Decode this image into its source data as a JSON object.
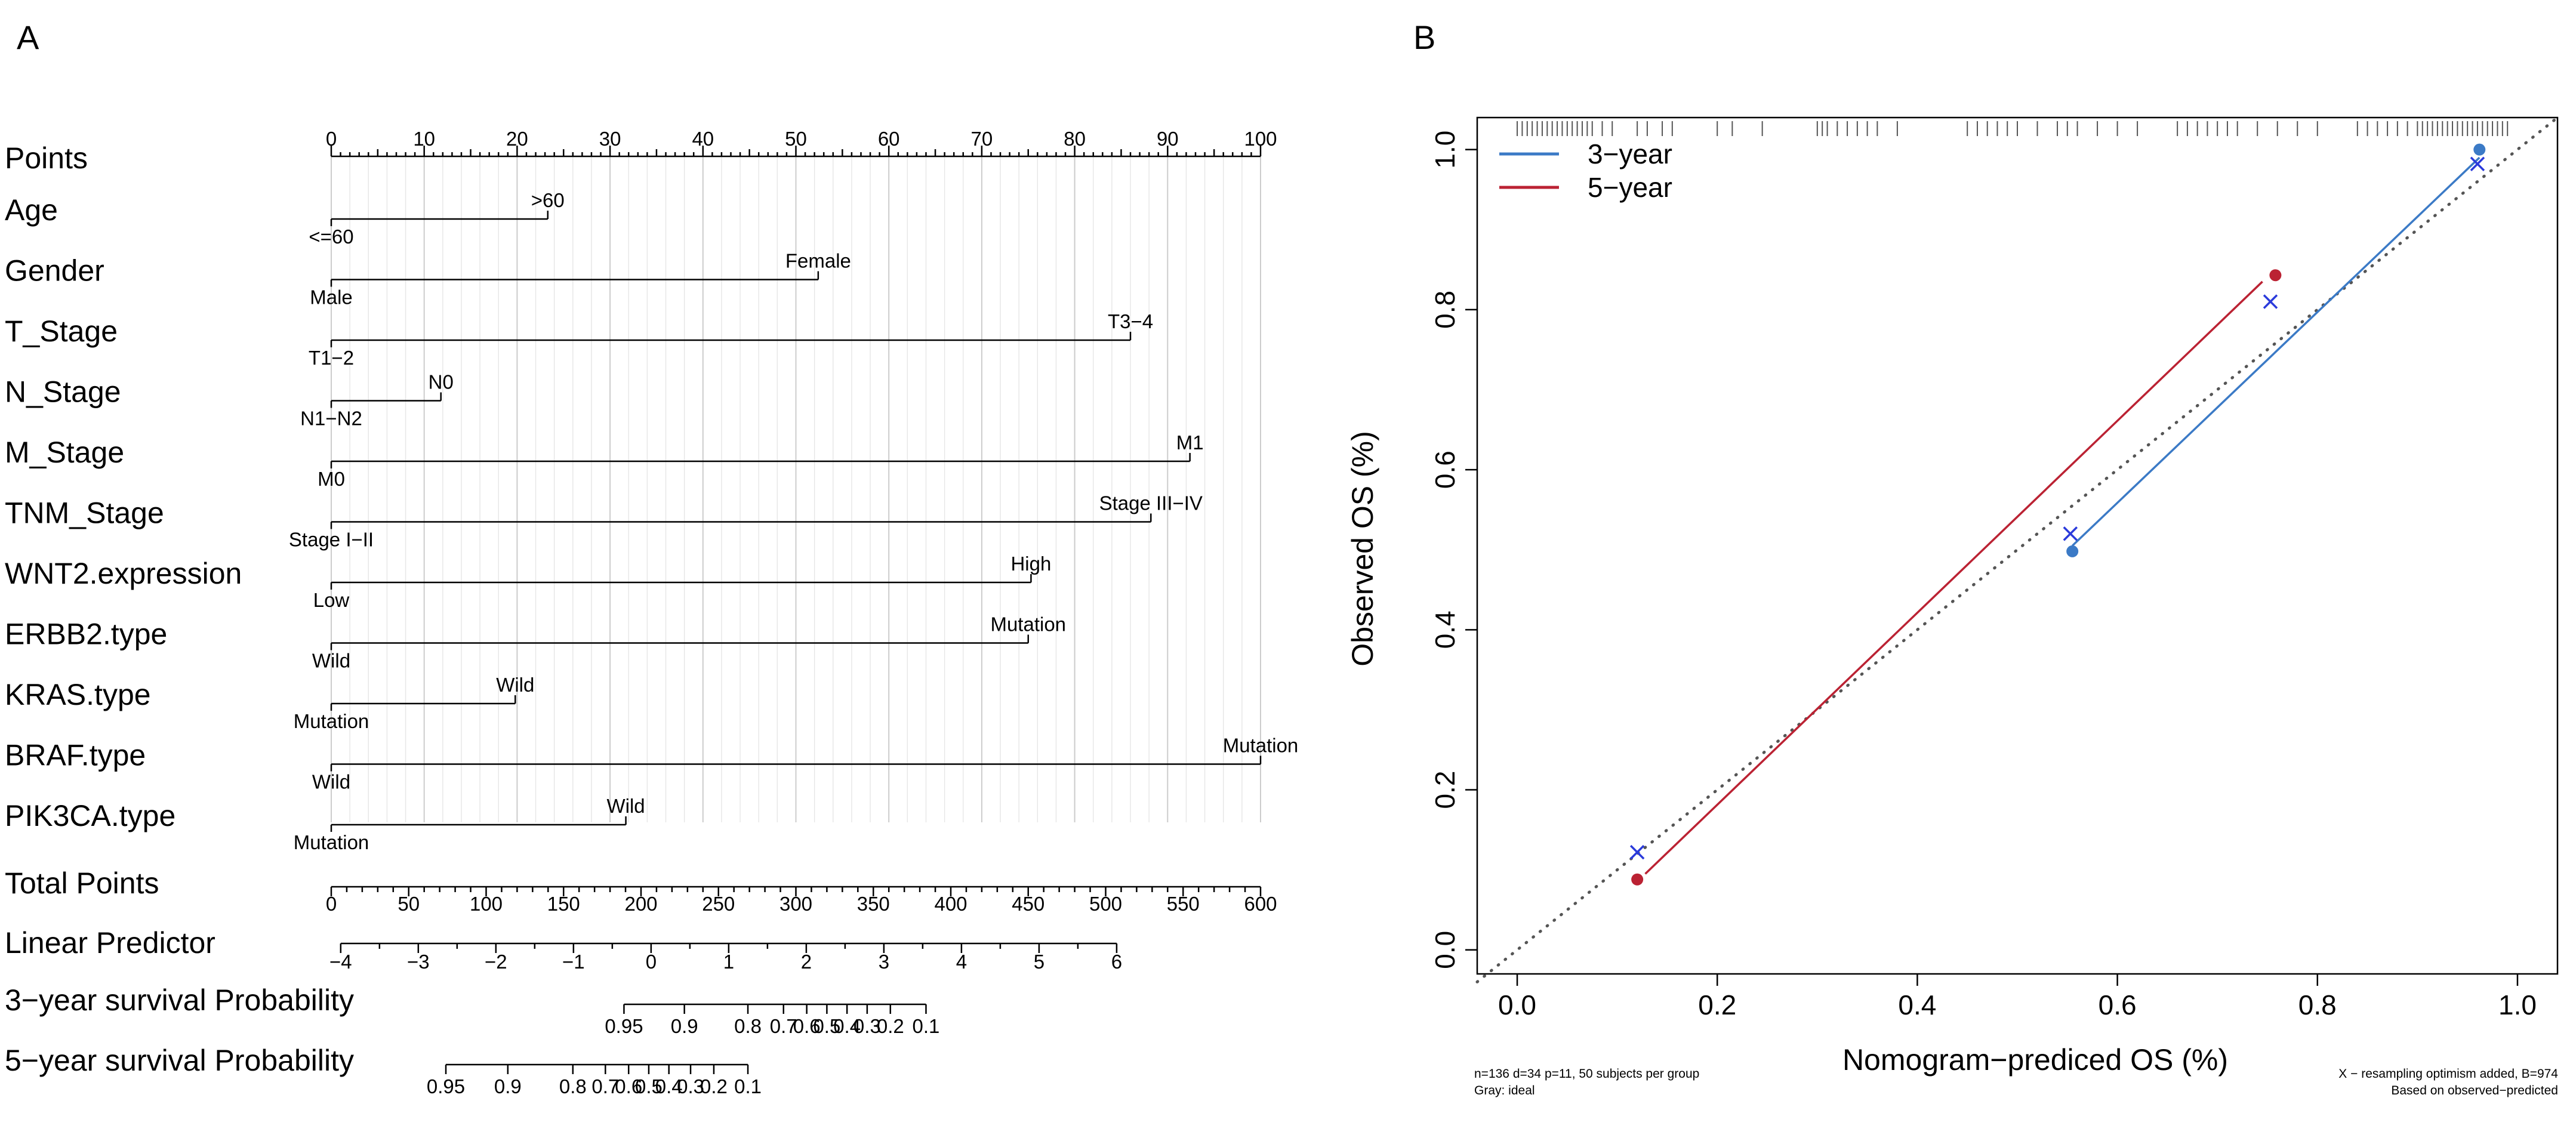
{
  "panel_a": {
    "label": "A",
    "chart_data": {
      "type": "nomogram",
      "points_scale": {
        "label": "Points",
        "min": 0,
        "max": 100,
        "major": [
          0,
          10,
          20,
          30,
          40,
          50,
          60,
          70,
          80,
          90,
          100
        ]
      },
      "variables": [
        {
          "name": "Age",
          "levels": [
            {
              "label": "<=60",
              "points": 0
            },
            {
              "label": ">60",
              "points": 23.3
            }
          ]
        },
        {
          "name": "Gender",
          "levels": [
            {
              "label": "Male",
              "points": 0
            },
            {
              "label": "Female",
              "points": 52.4
            }
          ]
        },
        {
          "name": "T_Stage",
          "levels": [
            {
              "label": "T1−2",
              "points": 0
            },
            {
              "label": "T3−4",
              "points": 86
            }
          ]
        },
        {
          "name": "N_Stage",
          "levels": [
            {
              "label": "N1−N2",
              "points": 0
            },
            {
              "label": "N0",
              "points": 11.8
            }
          ]
        },
        {
          "name": "M_Stage",
          "levels": [
            {
              "label": "M0",
              "points": 0
            },
            {
              "label": "M1",
              "points": 92.4
            }
          ]
        },
        {
          "name": "TNM_Stage",
          "levels": [
            {
              "label": "Stage I−II",
              "points": 0
            },
            {
              "label": "Stage III−IV",
              "points": 88.2
            }
          ]
        },
        {
          "name": "WNT2.expression",
          "levels": [
            {
              "label": "Low",
              "points": 0
            },
            {
              "label": "High",
              "points": 75.3
            }
          ]
        },
        {
          "name": "ERBB2.type",
          "levels": [
            {
              "label": "Wild",
              "points": 0
            },
            {
              "label": "Mutation",
              "points": 75
            }
          ]
        },
        {
          "name": "KRAS.type",
          "levels": [
            {
              "label": "Mutation",
              "points": 0
            },
            {
              "label": "Wild",
              "points": 19.8
            }
          ]
        },
        {
          "name": "BRAF.type",
          "levels": [
            {
              "label": "Wild",
              "points": 0
            },
            {
              "label": "Mutation",
              "points": 100
            }
          ]
        },
        {
          "name": "PIK3CA.type",
          "levels": [
            {
              "label": "Mutation",
              "points": 0
            },
            {
              "label": "Wild",
              "points": 31.7
            }
          ]
        }
      ],
      "total_points": {
        "label": "Total Points",
        "min": 0,
        "max": 600,
        "ticks": [
          0,
          50,
          100,
          150,
          200,
          250,
          300,
          350,
          400,
          450,
          500,
          550,
          600
        ]
      },
      "linear_predictor": {
        "label": "Linear Predictor",
        "range": [
          -4,
          6
        ],
        "total_points_at_min": 6.1,
        "total_points_per_unit": 50.1,
        "ticks": [
          -4,
          -3,
          -2,
          -1,
          0,
          1,
          2,
          3,
          4,
          5,
          6
        ]
      },
      "survival_3y": {
        "label": "3−year survival Probability",
        "ticks": [
          {
            "label": "0.95",
            "total": 189
          },
          {
            "label": "0.9",
            "total": 228
          },
          {
            "label": "0.8",
            "total": 269
          },
          {
            "label": "0.7",
            "total": 292
          },
          {
            "label": "0.6",
            "total": 307
          },
          {
            "label": "0.5",
            "total": 320
          },
          {
            "label": "0.4",
            "total": 333
          },
          {
            "label": "0.3",
            "total": 346
          },
          {
            "label": "0.2",
            "total": 361
          },
          {
            "label": "0.1",
            "total": 384
          }
        ]
      },
      "survival_5y": {
        "label": "5−year survival Probability",
        "ticks": [
          {
            "label": "0.95",
            "total": 74
          },
          {
            "label": "0.9",
            "total": 114
          },
          {
            "label": "0.8",
            "total": 156
          },
          {
            "label": "0.7",
            "total": 177
          },
          {
            "label": "0.6",
            "total": 192
          },
          {
            "label": "0.5",
            "total": 205
          },
          {
            "label": "0.4",
            "total": 218
          },
          {
            "label": "0.3",
            "total": 232
          },
          {
            "label": "0.2",
            "total": 247
          },
          {
            "label": "0.1",
            "total": 269
          }
        ]
      }
    }
  },
  "panel_b": {
    "label": "B",
    "chart_data": {
      "type": "line",
      "title": "",
      "xlabel": "Nomogram−prediced OS (%)",
      "ylabel": "Observed OS (%)",
      "xlim": [
        -0.04,
        1.04
      ],
      "ylim": [
        -0.03,
        1.04
      ],
      "xticks": [
        "0.0",
        "0.2",
        "0.4",
        "0.6",
        "0.8",
        "1.0"
      ],
      "yticks": [
        "0.0",
        "0.2",
        "0.4",
        "0.6",
        "0.8",
        "1.0"
      ],
      "legend": {
        "position": "top-left",
        "entries": [
          "3−year",
          "5−year"
        ]
      },
      "series": [
        {
          "name": "3−year",
          "color": "#3b7ac6",
          "line": [
            {
              "x": 0.555,
              "y": 0.505
            },
            {
              "x": 0.962,
              "y": 0.99
            }
          ],
          "observed_dots": [
            {
              "x": 0.555,
              "y": 0.498
            },
            {
              "x": 0.962,
              "y": 1.0
            }
          ],
          "corrected_x": [
            {
              "x": 0.553,
              "y": 0.52
            },
            {
              "x": 0.96,
              "y": 0.982
            }
          ]
        },
        {
          "name": "5−year",
          "color": "#bb2233",
          "line": [
            {
              "x": 0.128,
              "y": 0.095
            },
            {
              "x": 0.745,
              "y": 0.835
            }
          ],
          "observed_dots": [
            {
              "x": 0.12,
              "y": 0.088
            },
            {
              "x": 0.758,
              "y": 0.843
            }
          ],
          "corrected_x": [
            {
              "x": 0.12,
              "y": 0.122
            },
            {
              "x": 0.753,
              "y": 0.81
            }
          ]
        }
      ],
      "ideal_line": {
        "from": [
          -0.04,
          -0.04
        ],
        "to": [
          1.04,
          1.04
        ],
        "color": "#555555",
        "style": "dotted"
      },
      "x_marker_color": "#2a3adb",
      "rug_x": [
        0.0,
        0.005,
        0.01,
        0.015,
        0.02,
        0.025,
        0.03,
        0.035,
        0.04,
        0.045,
        0.05,
        0.055,
        0.06,
        0.065,
        0.07,
        0.075,
        0.085,
        0.095,
        0.12,
        0.13,
        0.145,
        0.155,
        0.2,
        0.215,
        0.245,
        0.3,
        0.305,
        0.31,
        0.32,
        0.33,
        0.34,
        0.35,
        0.36,
        0.38,
        0.45,
        0.46,
        0.47,
        0.48,
        0.49,
        0.5,
        0.52,
        0.54,
        0.55,
        0.56,
        0.58,
        0.6,
        0.62,
        0.66,
        0.67,
        0.68,
        0.69,
        0.7,
        0.71,
        0.72,
        0.74,
        0.76,
        0.78,
        0.8,
        0.84,
        0.85,
        0.86,
        0.87,
        0.88,
        0.89,
        0.9,
        0.905,
        0.91,
        0.915,
        0.92,
        0.925,
        0.93,
        0.935,
        0.94,
        0.945,
        0.95,
        0.955,
        0.96,
        0.965,
        0.97,
        0.975,
        0.98,
        0.985,
        0.99
      ],
      "footnote_left_1": "n=136 d=34 p=11, 50 subjects per group",
      "footnote_left_2": "Gray: ideal",
      "footnote_right_1": "X − resampling optimism added, B=974",
      "footnote_right_2": "Based on observed−predicted"
    }
  }
}
